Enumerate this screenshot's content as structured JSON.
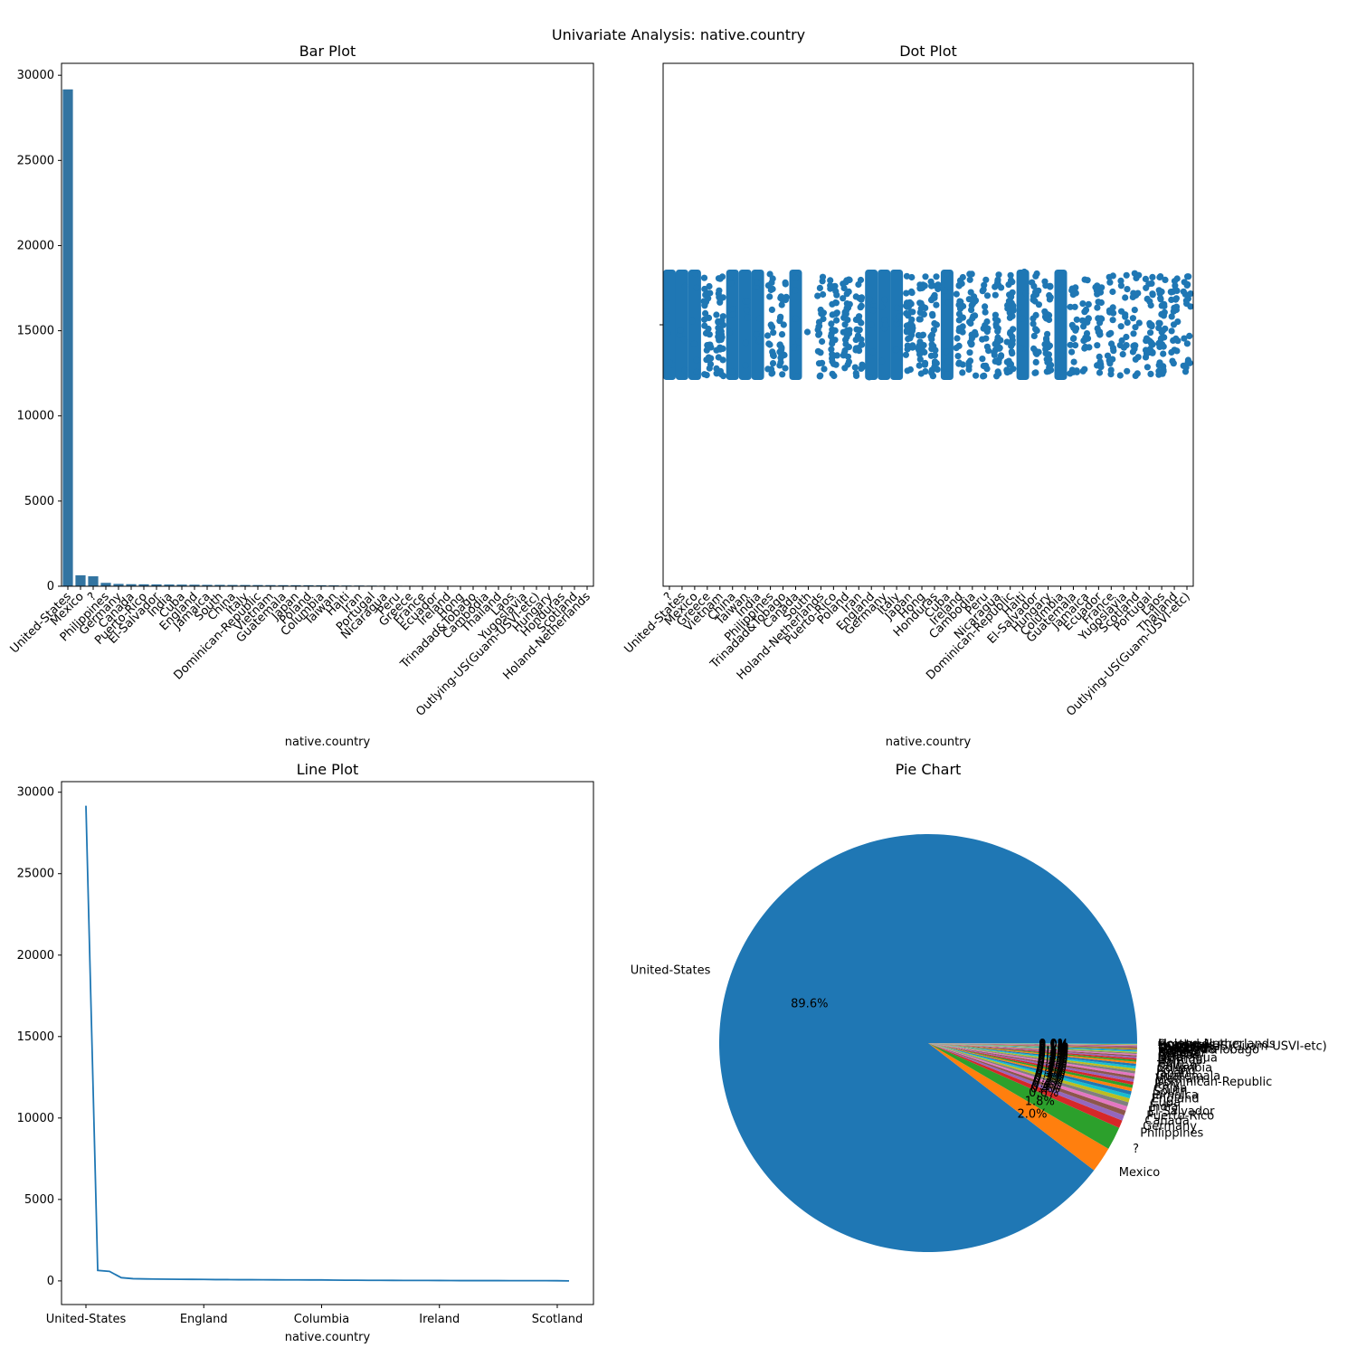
{
  "figure_title": "Univariate Analysis: native.country",
  "colors": {
    "bar": "#3274a1",
    "dot": "#1f77b4",
    "line": "#1f77b4",
    "pie": [
      "#1f77b4",
      "#ff7f0e",
      "#2ca02c",
      "#d62728",
      "#9467bd",
      "#8c564b",
      "#e377c2",
      "#7f7f7f",
      "#bcbd22",
      "#17becf"
    ]
  },
  "chart_data": [
    {
      "type": "bar",
      "title": "Bar Plot",
      "xlabel": "native.country",
      "ylabel": "",
      "ylim": [
        0,
        30700
      ],
      "yticks": [
        0,
        5000,
        10000,
        15000,
        20000,
        25000,
        30000
      ],
      "categories": [
        "United-States",
        "Mexico",
        "?",
        "Philippines",
        "Germany",
        "Canada",
        "Puerto-Rico",
        "El-Salvador",
        "India",
        "Cuba",
        "England",
        "Jamaica",
        "South",
        "China",
        "Italy",
        "Dominican-Republic",
        "Vietnam",
        "Guatemala",
        "Japan",
        "Poland",
        "Columbia",
        "Taiwan",
        "Haiti",
        "Iran",
        "Portugal",
        "Nicaragua",
        "Peru",
        "Greece",
        "France",
        "Ecuador",
        "Ireland",
        "Hong",
        "Trinadad&Tobago",
        "Cambodia",
        "Thailand",
        "Laos",
        "Yugoslavia",
        "Outlying-US(Guam-USVI-etc)",
        "Hungary",
        "Honduras",
        "Scotland",
        "Holand-Netherlands"
      ],
      "values": [
        29170,
        643,
        583,
        198,
        137,
        121,
        114,
        106,
        100,
        95,
        90,
        81,
        80,
        75,
        73,
        70,
        67,
        64,
        62,
        60,
        59,
        51,
        44,
        43,
        37,
        34,
        31,
        29,
        29,
        28,
        24,
        20,
        19,
        19,
        18,
        18,
        16,
        14,
        13,
        13,
        12,
        1
      ]
    },
    {
      "type": "scatter",
      "title": "Dot Plot",
      "xlabel": "native.country",
      "ylabel": "",
      "ylim": [
        0,
        1
      ],
      "ytick_labels": [
        ""
      ],
      "categories": [
        "?",
        "United-States",
        "Mexico",
        "Greece",
        "Vietnam",
        "China",
        "Taiwan",
        "India",
        "Philippines",
        "Trinadad&Tobago",
        "Canada",
        "South",
        "Holand-Netherlands",
        "Puerto-Rico",
        "Poland",
        "Iran",
        "England",
        "Germany",
        "Italy",
        "Japan",
        "Hong",
        "Honduras",
        "Cuba",
        "Ireland",
        "Cambodia",
        "Peru",
        "Nicaragua",
        "Dominican-Republic",
        "Haiti",
        "El-Salvador",
        "Hungary",
        "Columbia",
        "Guatemala",
        "Jamaica",
        "Ecuador",
        "France",
        "Yugoslavia",
        "Scotland",
        "Portugal",
        "Laos",
        "Thailand",
        "Outlying-US(Guam-USVI-etc)"
      ],
      "y_values": "row index of each record, from about 12200 to 18400"
    },
    {
      "type": "line",
      "title": "Line Plot",
      "xlabel": "native.country",
      "ylabel": "",
      "ylim": [
        -1450,
        30650
      ],
      "yticks": [
        0,
        5000,
        10000,
        15000,
        20000,
        25000,
        30000
      ],
      "xticks": [
        0,
        10,
        20,
        30,
        40
      ],
      "xtick_labels": [
        "United-States",
        "England",
        "Columbia",
        "Ireland",
        "Scotland"
      ],
      "values": [
        29170,
        643,
        583,
        198,
        137,
        121,
        114,
        106,
        100,
        95,
        90,
        81,
        80,
        75,
        73,
        70,
        67,
        64,
        62,
        60,
        59,
        51,
        44,
        43,
        37,
        34,
        31,
        29,
        29,
        28,
        24,
        20,
        19,
        19,
        18,
        18,
        16,
        14,
        13,
        13,
        12,
        1
      ]
    },
    {
      "type": "pie",
      "title": "Pie Chart",
      "categories": [
        "United-States",
        "Mexico",
        "?",
        "Philippines",
        "Germany",
        "Canada",
        "Puerto-Rico",
        "El-Salvador",
        "India",
        "Cuba",
        "England",
        "Jamaica",
        "South",
        "China",
        "Italy",
        "Dominican-Republic",
        "Vietnam",
        "Guatemala",
        "Japan",
        "Poland",
        "Columbia",
        "Taiwan",
        "Haiti",
        "Iran",
        "Portugal",
        "Nicaragua",
        "Peru",
        "Greece",
        "France",
        "Ecuador",
        "Ireland",
        "Hong",
        "Trinadad&Tobago",
        "Cambodia",
        "Thailand",
        "Laos",
        "Yugoslavia",
        "Outlying-US(Guam-USVI-etc)",
        "Hungary",
        "Honduras",
        "Scotland",
        "Holand-Netherlands"
      ],
      "values": [
        29170,
        643,
        583,
        198,
        137,
        121,
        114,
        106,
        100,
        95,
        90,
        81,
        80,
        75,
        73,
        70,
        67,
        64,
        62,
        60,
        59,
        51,
        44,
        43,
        37,
        34,
        31,
        29,
        29,
        28,
        24,
        20,
        19,
        19,
        18,
        18,
        16,
        14,
        13,
        13,
        12,
        1
      ],
      "autopct_labels": [
        "89.6%",
        "2.0%",
        "1.8%",
        "0.6%",
        "0.4%",
        "0.4%",
        "0.4%",
        "0.3%",
        "0.3%",
        "0.3%",
        "0.3%",
        "0.2%",
        "0.2%",
        "0.2%",
        "0.2%",
        "0.2%",
        "0.2%",
        "0.2%",
        "0.2%",
        "0.2%",
        "0.2%",
        "0.2%",
        "0.1%",
        "0.1%",
        "0.1%",
        "0.1%",
        "0.1%",
        "0.1%",
        "0.1%",
        "0.1%",
        "0.1%",
        "0.1%",
        "0.1%",
        "0.1%",
        "0.1%",
        "0.1%",
        "0.0%",
        "0.0%",
        "0.0%",
        "0.0%",
        "0.0%",
        "0.0%"
      ]
    }
  ]
}
